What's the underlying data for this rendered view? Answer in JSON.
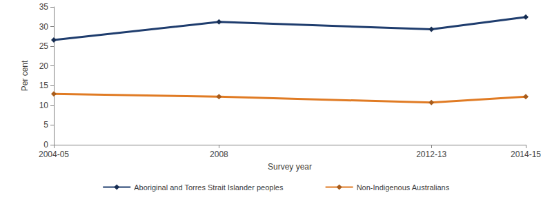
{
  "chart_data": {
    "type": "line",
    "x_label": "Survey year",
    "y_label": "Per cent",
    "x": [
      2004.5,
      2008,
      2012.5,
      2014.5
    ],
    "xlim": [
      2004.5,
      2014.5
    ],
    "xticks": [
      {
        "value": 2004.5,
        "label": "2004-05"
      },
      {
        "value": 2008,
        "label": "2008"
      },
      {
        "value": 2012.5,
        "label": "2012-13"
      },
      {
        "value": 2014.5,
        "label": "2014-15"
      }
    ],
    "ylim": [
      0,
      35
    ],
    "yticks": [
      0,
      5,
      10,
      15,
      20,
      25,
      30,
      35
    ],
    "grid": false,
    "legend": "bottom",
    "marker": "diamond",
    "series": [
      {
        "name": "Aboriginal and Torres Strait Islander peoples",
        "color": "#1f3d6e",
        "values": [
          26.6,
          31.2,
          29.3,
          32.4
        ]
      },
      {
        "name": "Non-Indigenous Australians",
        "color": "#e07b24",
        "values": [
          12.9,
          12.2,
          10.7,
          12.2
        ]
      }
    ]
  }
}
